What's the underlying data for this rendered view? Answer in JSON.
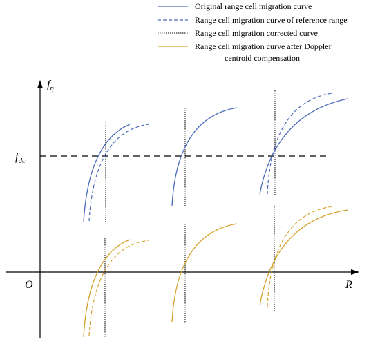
{
  "colors": {
    "blue": "#4a6bbb",
    "gold": "#d4a22a",
    "black": "#000000"
  },
  "legend": {
    "items": [
      {
        "label": "Original range cell migration curve",
        "style": "solid-blue"
      },
      {
        "label": "Range cell migration curve of reference range",
        "style": "dashed-blue"
      },
      {
        "label": "Range cell migration corrected curve",
        "style": "dotted-black"
      },
      {
        "label": "Range cell migration curve after Doppler",
        "style": "solid-gold"
      }
    ],
    "continuation": "centroid compensation"
  },
  "axes": {
    "y_symbol": "f",
    "y_subscript": "η",
    "x_label": "R",
    "origin_label": "O",
    "fdc_symbol": "f",
    "fdc_subscript": "dc"
  }
}
